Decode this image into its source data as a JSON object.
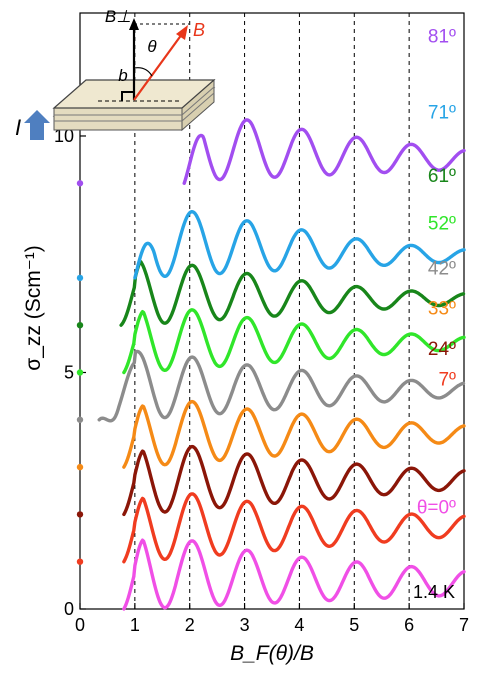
{
  "chart_data": {
    "type": "line",
    "xlabel": "B_F(θ)/B",
    "ylabel": "σ_zz (Scm⁻¹)",
    "xlim": [
      0,
      7
    ],
    "ylim": [
      0,
      12.6
    ],
    "x_ticks": [
      0,
      1,
      2,
      3,
      4,
      5,
      6,
      7
    ],
    "y_ticks": [
      0,
      5,
      10
    ],
    "dashed_vertical_lines_at": [
      1,
      2,
      3,
      4,
      5,
      6
    ],
    "grid": false,
    "temperature_label": "1.4 K",
    "oscillation_period_x": 1.0,
    "series": [
      {
        "name": "θ=0º",
        "color": "#f04fe6",
        "offset": 0.0,
        "x_start": 0.8,
        "x_end": 7.0,
        "amplitude": [
          1.65,
          1.4,
          1.15,
          0.95,
          0.8,
          0.65,
          0.5
        ],
        "drift": 0.3,
        "label_at_y": 2.15
      },
      {
        "name": "7º",
        "color": "#f03c20",
        "offset": 1.0,
        "x_start": 0.8,
        "x_end": 7.0,
        "amplitude": [
          1.5,
          1.35,
          1.1,
          0.9,
          0.72,
          0.55,
          0.42
        ],
        "drift": 0.55,
        "label_at_y": 4.85
      },
      {
        "name": "24º",
        "color": "#8b1608",
        "offset": 2.0,
        "x_start": 0.8,
        "x_end": 7.0,
        "amplitude": [
          1.5,
          1.35,
          1.1,
          0.88,
          0.7,
          0.52,
          0.38
        ],
        "drift": 0.55,
        "label_at_y": 5.5
      },
      {
        "name": "33º",
        "color": "#f58a16",
        "offset": 3.0,
        "x_start": 0.8,
        "x_end": 7.0,
        "amplitude": [
          1.45,
          1.3,
          1.05,
          0.85,
          0.65,
          0.48,
          0.33
        ],
        "drift": 0.55,
        "label_at_y": 6.35
      },
      {
        "name": "42º",
        "color": "#8c8c8c",
        "offset": 4.0,
        "x_start": 0.35,
        "x_end": 7.0,
        "amplitude": [
          1.45,
          1.25,
          1.0,
          0.8,
          0.6,
          0.42,
          0.28
        ],
        "drift": 0.5,
        "label_at_y": 7.2
      },
      {
        "name": "52º",
        "color": "#30e62a",
        "offset": 5.0,
        "x_start": 0.8,
        "x_end": 7.0,
        "amplitude": [
          1.45,
          1.25,
          1.0,
          0.78,
          0.58,
          0.4,
          0.25
        ],
        "drift": 0.5,
        "label_at_y": 8.15
      },
      {
        "name": "61º",
        "color": "#18861a",
        "offset": 6.0,
        "x_start": 0.75,
        "x_end": 7.0,
        "amplitude": [
          1.4,
          1.2,
          0.95,
          0.72,
          0.52,
          0.35,
          0.22
        ],
        "drift": 0.45,
        "label_at_y": 9.15
      },
      {
        "name": "71º",
        "color": "#27a4e6",
        "offset": 7.0,
        "x_start": 1.0,
        "x_end": 7.0,
        "amplitude": [
          1.6,
          1.35,
          1.1,
          0.85,
          0.6,
          0.4,
          0.25
        ],
        "drift": 0.35,
        "label_at_y": 10.5
      },
      {
        "name": "81º",
        "color": "#a24ef0",
        "offset": 9.0,
        "x_start": 1.9,
        "x_end": 7.0,
        "amplitude": [
          1.5,
          1.45,
          1.25,
          1.0,
          0.78,
          0.58,
          0.4
        ],
        "drift": 0.3,
        "label_at_y": 12.1
      }
    ],
    "left_offset_markers": [
      {
        "y": 1.0,
        "color": "#f03c20"
      },
      {
        "y": 2.0,
        "color": "#8b1608"
      },
      {
        "y": 3.0,
        "color": "#f58a16"
      },
      {
        "y": 4.0,
        "color": "#8c8c8c"
      },
      {
        "y": 5.0,
        "color": "#30e62a"
      },
      {
        "y": 6.0,
        "color": "#18861a"
      },
      {
        "y": 7.0,
        "color": "#27a4e6"
      },
      {
        "y": 9.0,
        "color": "#a24ef0"
      }
    ]
  },
  "inset": {
    "b_perp_label": "B⊥",
    "b_label": "B",
    "b_small_label": "b",
    "theta_label": "θ",
    "current_label": "I",
    "b_color": "#e8361a",
    "current_color": "#4f7fc0"
  }
}
